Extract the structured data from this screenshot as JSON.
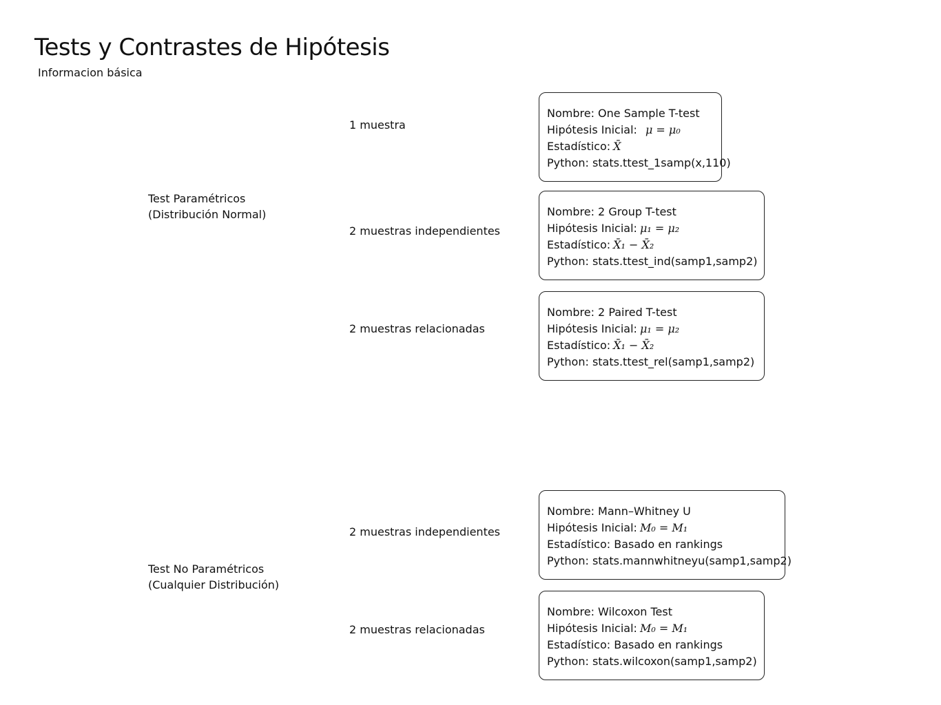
{
  "header": {
    "title": "Tests y Contrastes de  Hipótesis",
    "subtitle": "Informacion básica"
  },
  "categories": [
    {
      "line1": "Test  Paramétricos",
      "line2": "(Distribución  Normal)"
    },
    {
      "line1": "Test  No  Paramétricos",
      "line2": "(Cualquier  Distribución)"
    }
  ],
  "samples": [
    "1 muestra",
    "2 muestras independientes",
    "2 muestras relacionadas",
    "2 muestras independientes",
    "2 muestras relacionadas"
  ],
  "cards": [
    {
      "nombre": "Nombre: One Sample T-test",
      "hipotesis_label": "Hipótesis  Inicial:",
      "hipotesis_formula": "μ = μ₀",
      "estadistico_label": "Estadístico:",
      "estadistico_formula": "X̄",
      "python": "Python: stats.ttest_1samp(x,110)"
    },
    {
      "nombre": "Nombre: 2 Group T-test",
      "hipotesis_label": "Hipótesis  Inicial:",
      "hipotesis_formula": "μ₁ = μ₂",
      "estadistico_label": "Estadístico:",
      "estadistico_formula": "X̄₁ − X̄₂",
      "python": "Python: stats.ttest_ind(samp1,samp2)"
    },
    {
      "nombre": "Nombre: 2  Paired T-test",
      "hipotesis_label": "Hipótesis  Inicial:",
      "hipotesis_formula": "μ₁ = μ₂",
      "estadistico_label": "Estadístico:",
      "estadistico_formula": "X̄₁ − X̄₂",
      "python": "Python: stats.ttest_rel(samp1,samp2)"
    },
    {
      "nombre": "Nombre:  Mann–Whitney U",
      "hipotesis_label": "Hipótesis  Inicial:",
      "hipotesis_formula": "M₀ = M₁",
      "estadistico_label": "Estadístico:",
      "estadistico_formula": " Basado en rankings",
      "python": "Python: stats.mannwhitneyu(samp1,samp2)"
    },
    {
      "nombre": "Nombre: Wilcoxon Test",
      "hipotesis_label": "Hipótesis  Inicial:",
      "hipotesis_formula": "M₀ = M₁",
      "estadistico_label": "Estadístico:",
      "estadistico_formula": " Basado en rankings",
      "python": "Python: stats.wilcoxon(samp1,samp2)"
    }
  ]
}
